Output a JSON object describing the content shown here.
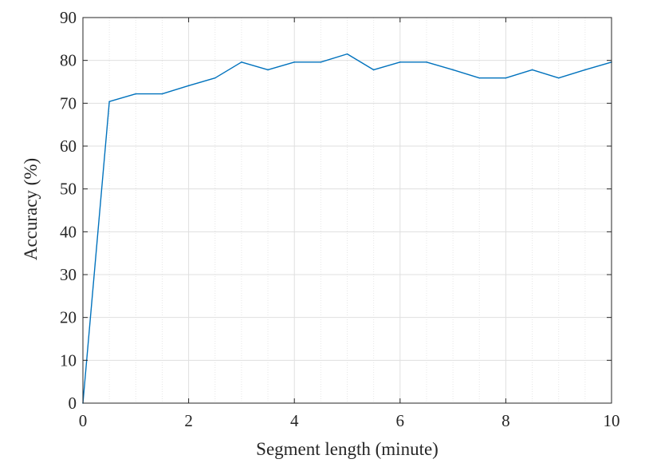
{
  "chart_data": {
    "type": "line",
    "title": "",
    "xlabel": "Segment length (minute)",
    "ylabel": "Accuracy (%)",
    "xlim": [
      0,
      10
    ],
    "ylim": [
      0,
      90
    ],
    "x_ticks": [
      0,
      2,
      4,
      6,
      8,
      10
    ],
    "y_ticks": [
      0,
      10,
      20,
      30,
      40,
      50,
      60,
      70,
      80,
      90
    ],
    "x_minor_step": 0.5,
    "grid": true,
    "legend": "none",
    "colors": {
      "line": "#0072BD",
      "axis": "#262626",
      "major_grid": "#DFDFDF",
      "minor_grid": "#E6E6E6"
    },
    "series": [
      {
        "x": [
          0,
          0.5,
          1,
          1.5,
          2,
          2.5,
          3,
          3.5,
          4,
          4.5,
          5,
          5.5,
          6,
          6.5,
          7,
          7.5,
          8,
          8.5,
          9,
          9.5,
          10
        ],
        "values": [
          0,
          70.4,
          72.2,
          72.2,
          74.1,
          75.9,
          79.6,
          77.8,
          79.6,
          79.6,
          81.5,
          77.8,
          79.6,
          79.6,
          77.8,
          75.9,
          75.9,
          77.8,
          75.9,
          77.8,
          79.6
        ]
      }
    ]
  }
}
